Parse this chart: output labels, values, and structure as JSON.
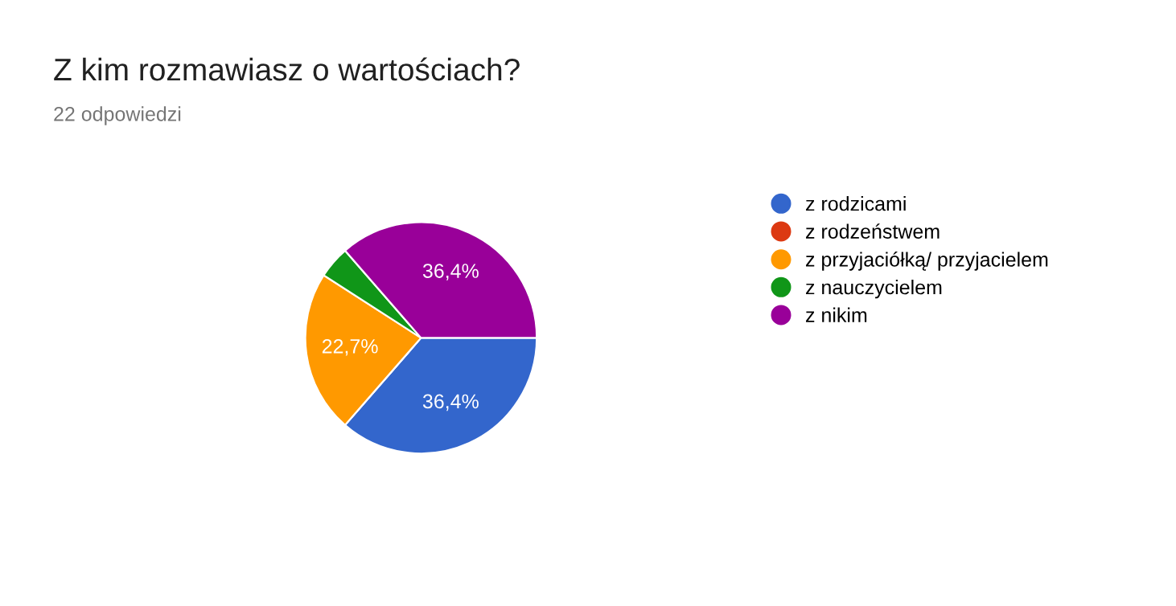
{
  "chart_data": {
    "type": "pie",
    "title": "Z kim rozmawiasz o wartościach?",
    "subtitle": "22 odpowiedzi",
    "categories": [
      "z rodzicami",
      "z rodzeństwem",
      "z przyjaciółką/ przyjacielem",
      "z nauczycielem",
      "z nikim"
    ],
    "values": [
      36.4,
      0,
      22.7,
      4.5,
      36.4
    ],
    "colors": [
      "#3366cc",
      "#dc3912",
      "#ff9900",
      "#109618",
      "#990099"
    ],
    "value_labels": [
      "36,4%",
      null,
      "22,7%",
      null,
      "36,4%"
    ],
    "legend": "right"
  }
}
